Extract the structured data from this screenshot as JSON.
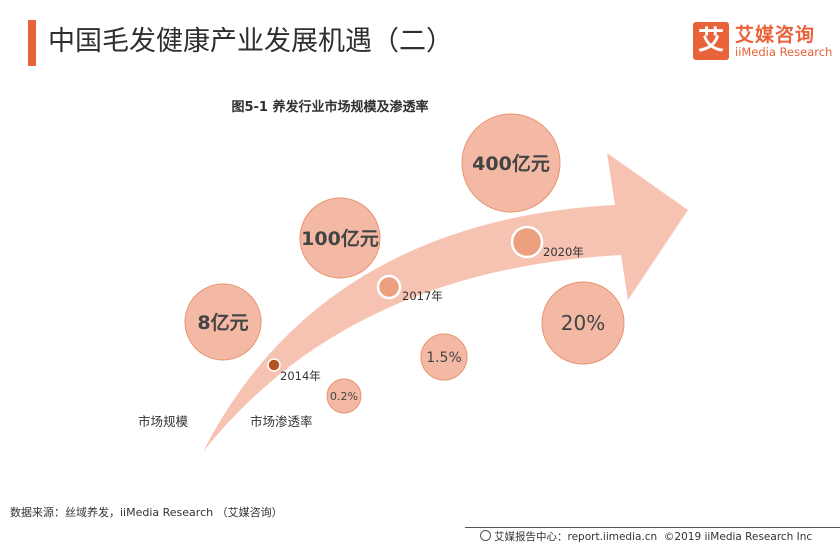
{
  "header": {
    "title": "中国毛发健康产业发展机遇（二）",
    "accent_color": "#e8623a"
  },
  "logo": {
    "mark": "艾",
    "name_cn": "艾媒咨询",
    "name_en": "iiMedia Research"
  },
  "chart_data": {
    "type": "bubble-timeline",
    "title": "图5-1 养发行业市场规模及渗透率",
    "row_labels": [
      "市场规模",
      "市场渗透率"
    ],
    "points": [
      {
        "year": "2014年",
        "market_size_label": "8亿元",
        "market_size": 8,
        "penetration_label": "0.2%",
        "penetration": 0.2
      },
      {
        "year": "2017年",
        "market_size_label": "100亿元",
        "market_size": 100,
        "penetration_label": "1.5%",
        "penetration": 1.5
      },
      {
        "year": "2020年",
        "market_size_label": "400亿元",
        "market_size": 400,
        "penetration_label": "20%",
        "penetration": 20
      }
    ],
    "colors": {
      "arrow": "#f6c3b2",
      "bubble_fill": "#f3b9a5",
      "bubble_stroke": "#e8946f",
      "marker_2014": "#b3541e",
      "marker_other": "#eca07f"
    }
  },
  "footer": {
    "source": "数据来源：丝域养发，iiMedia Research （艾媒咨询）",
    "center": "艾媒报告中心：report.iimedia.cn",
    "copyright": "©2019 iiMedia Research Inc"
  }
}
